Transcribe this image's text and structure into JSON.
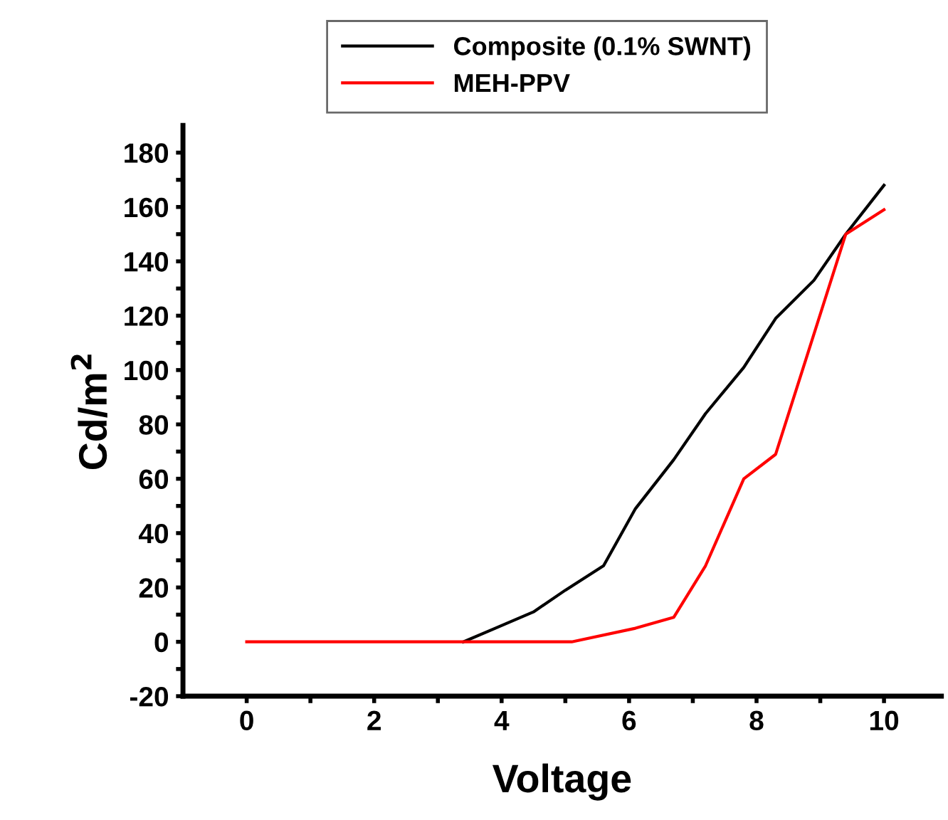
{
  "chart_data": {
    "type": "line",
    "xlabel": "Voltage",
    "ylabel": "Cd/m$^{2}$",
    "series": [
      {
        "name": "Composite (0.1% SWNT)",
        "color": "#000000",
        "x": [
          3.4,
          3.9,
          4.5,
          5.0,
          5.6,
          6.1,
          6.7,
          7.2,
          7.8,
          8.3,
          8.9,
          9.4,
          10
        ],
        "values": [
          0,
          5,
          11,
          19,
          28,
          49,
          67,
          84,
          101,
          119,
          133,
          150,
          168
        ]
      },
      {
        "name": "MEH-PPV",
        "color": "#ff0000",
        "x": [
          0,
          5.1,
          6.1,
          6.7,
          7.2,
          7.8,
          8.3,
          9.4,
          10
        ],
        "values": [
          0,
          0,
          5,
          9,
          28,
          60,
          69,
          150,
          159
        ]
      }
    ],
    "xlim": [
      -1,
      10.9
    ],
    "ylim": [
      -20,
      190
    ],
    "xticks": [
      0,
      {
        "value": 1,
        "label": null
      },
      2,
      {
        "value": 3,
        "label": null
      },
      4,
      {
        "value": 5,
        "label": null
      },
      6,
      {
        "value": 7,
        "label": null
      },
      8,
      {
        "value": 9,
        "label": null
      },
      10
    ],
    "yticks": [
      -20,
      {
        "value": -10,
        "label": null
      },
      0,
      {
        "value": 10,
        "label": null
      },
      20,
      {
        "value": 30,
        "label": null
      },
      40,
      {
        "value": 50,
        "label": null
      },
      60,
      {
        "value": 70,
        "label": null
      },
      80,
      {
        "value": 90,
        "label": null
      },
      100,
      {
        "value": 110,
        "label": null
      },
      120,
      {
        "value": 130,
        "label": null
      },
      140,
      {
        "value": 150,
        "label": null
      },
      160,
      {
        "value": 170,
        "label": null
      },
      180
    ],
    "grid": false,
    "legend": "top",
    "marker": "none",
    "line_style": "solid"
  }
}
